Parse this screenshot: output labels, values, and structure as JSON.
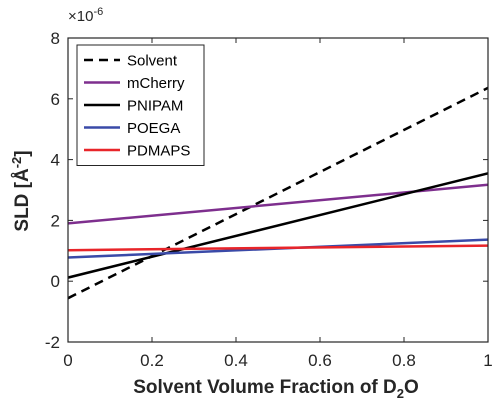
{
  "chart_data": {
    "type": "line",
    "xlabel": {
      "main": "Solvent Volume Fraction of D",
      "sub": "2",
      "tail": "O"
    },
    "ylabel": {
      "main": "SLD [Å",
      "sup": "-2",
      "tail": "]"
    },
    "y_multiplier": {
      "base": "×10",
      "exp": "-6"
    },
    "xlim": [
      0,
      1
    ],
    "ylim": [
      -2,
      8
    ],
    "xticks": [
      0,
      0.2,
      0.4,
      0.6,
      0.8,
      1
    ],
    "xtick_labels": [
      "0",
      "0.2",
      "0.4",
      "0.6",
      "0.8",
      "1"
    ],
    "yticks": [
      -2,
      0,
      2,
      4,
      6,
      8
    ],
    "ytick_labels": [
      "-2",
      "0",
      "2",
      "4",
      "6",
      "8"
    ],
    "grid": false,
    "legend_position": "top-left",
    "series": [
      {
        "name": "Solvent",
        "color": "#000000",
        "dash": "dashed",
        "x": [
          0,
          1
        ],
        "y": [
          -0.56,
          6.36
        ]
      },
      {
        "name": "mCherry",
        "color": "#7e2f8e",
        "dash": "solid",
        "x": [
          0,
          1
        ],
        "y": [
          1.9,
          3.17
        ]
      },
      {
        "name": "PNIPAM",
        "color": "#000000",
        "dash": "solid",
        "x": [
          0,
          1
        ],
        "y": [
          0.12,
          3.55
        ]
      },
      {
        "name": "POEGA",
        "color": "#3a4aa8",
        "dash": "solid",
        "x": [
          0,
          1
        ],
        "y": [
          0.78,
          1.37
        ]
      },
      {
        "name": "PDMAPS",
        "color": "#e8252a",
        "dash": "solid",
        "x": [
          0,
          1
        ],
        "y": [
          1.02,
          1.17
        ]
      }
    ]
  }
}
